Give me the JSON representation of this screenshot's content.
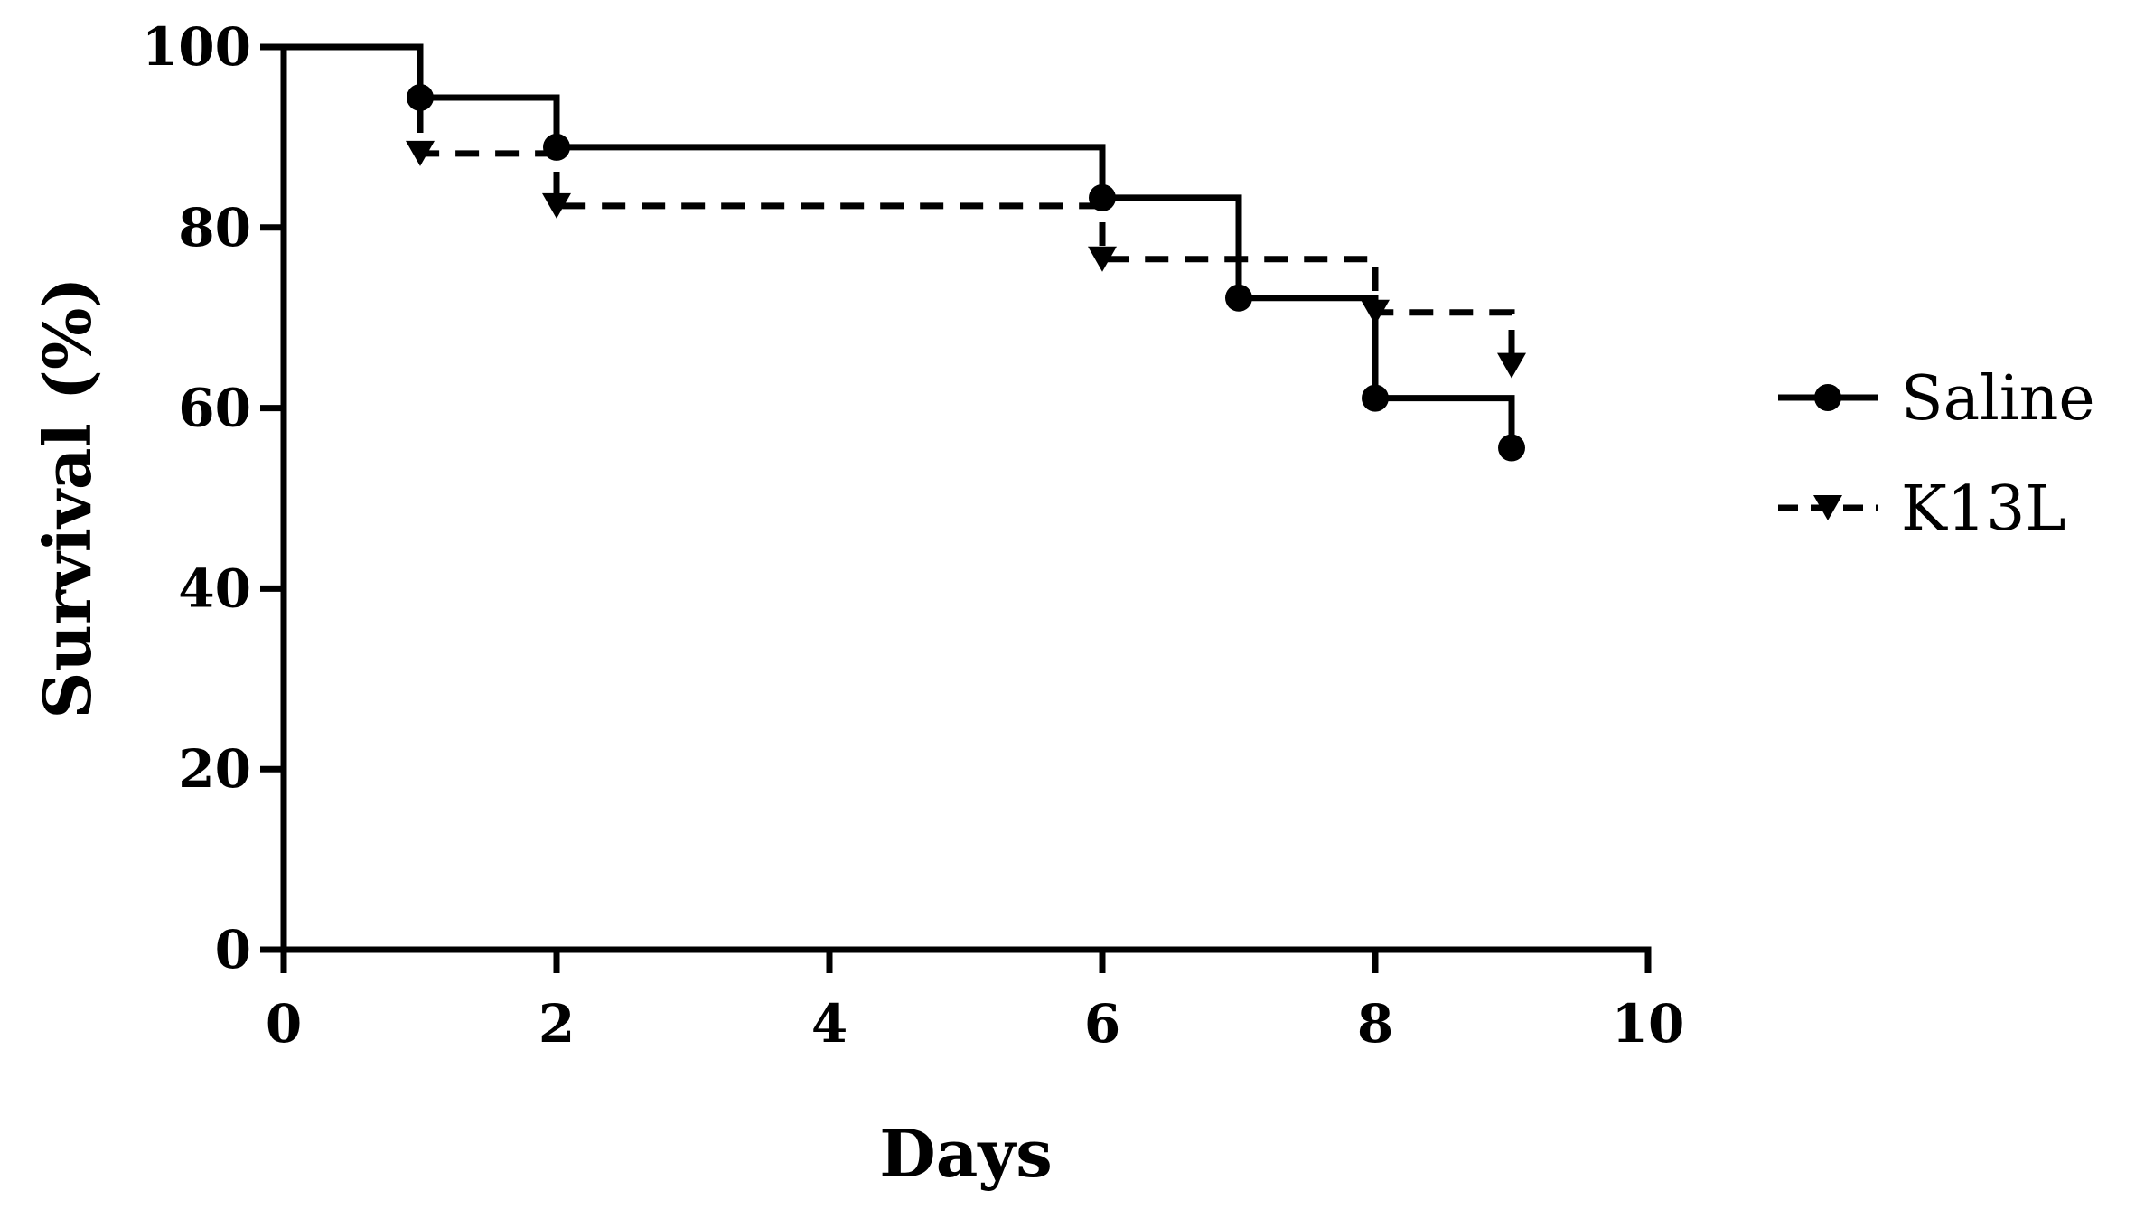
{
  "chart_data": {
    "type": "line",
    "step": true,
    "xlabel": "Days",
    "ylabel": "Survival (%)",
    "xlim": [
      0,
      10
    ],
    "ylim": [
      0,
      100
    ],
    "xticks": [
      0,
      2,
      4,
      6,
      8,
      10
    ],
    "yticks": [
      0,
      20,
      40,
      60,
      80,
      100
    ],
    "grid": false,
    "legend_position": "right",
    "series": [
      {
        "name": "Saline",
        "color": "#000000",
        "line_style": "solid",
        "marker": "circle",
        "x": [
          0,
          1,
          2,
          6,
          7,
          8,
          9
        ],
        "y": [
          100,
          94.4,
          88.9,
          83.3,
          72.2,
          61.1,
          55.6
        ]
      },
      {
        "name": "K13L",
        "color": "#000000",
        "line_style": "dashed",
        "marker": "triangle-down",
        "x": [
          0,
          1,
          2,
          6,
          8,
          9
        ],
        "y": [
          100,
          88.2,
          82.4,
          76.5,
          70.6,
          64.7
        ]
      }
    ]
  }
}
